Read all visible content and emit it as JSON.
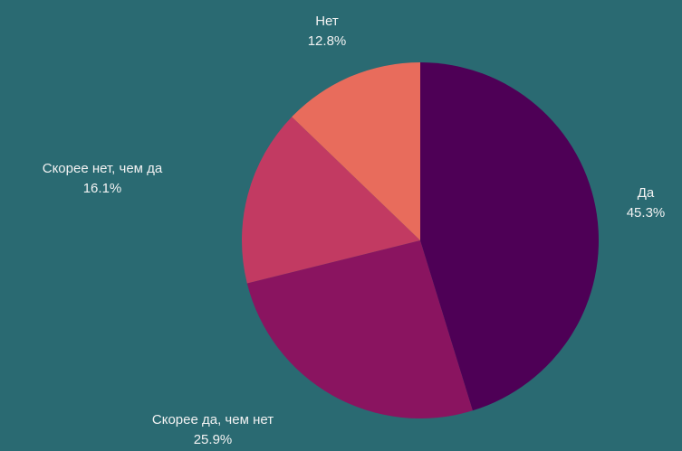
{
  "colors": {
    "background": "#2a6a72",
    "label": "#f2f2f2"
  },
  "chart_data": {
    "type": "pie",
    "start_angle_deg": 0,
    "direction": "clockwise",
    "slices": [
      {
        "label": "Да",
        "value": 45.3,
        "value_label": "45.3%",
        "color": "#4e0056"
      },
      {
        "label": "Скорее да, чем нет",
        "value": 25.9,
        "value_label": "25.9%",
        "color": "#8a1460"
      },
      {
        "label": "Скорее нет, чем да",
        "value": 16.1,
        "value_label": "16.1%",
        "color": "#c23a62"
      },
      {
        "label": "Нет",
        "value": 12.8,
        "value_label": "12.8%",
        "color": "#e86c5c"
      }
    ]
  }
}
